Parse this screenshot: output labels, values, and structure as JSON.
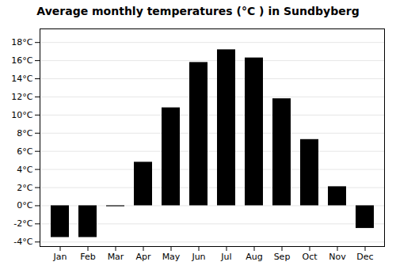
{
  "chart_data": {
    "type": "bar",
    "title": "Average monthly temperatures (°C ) in Sundbyberg",
    "categories": [
      "Jan",
      "Feb",
      "Mar",
      "Apr",
      "May",
      "Jun",
      "Jul",
      "Aug",
      "Sep",
      "Oct",
      "Nov",
      "Dec"
    ],
    "values": [
      -3.5,
      -3.5,
      -0.1,
      4.8,
      10.8,
      15.8,
      17.2,
      16.3,
      11.8,
      7.3,
      2.1,
      -2.5
    ],
    "ylim": [
      -4.5,
      19.5
    ],
    "yticks": [
      {
        "value": -4,
        "label": "-4°C"
      },
      {
        "value": -2,
        "label": "-2°C"
      },
      {
        "value": 0,
        "label": "0°C"
      },
      {
        "value": 2,
        "label": "2°C"
      },
      {
        "value": 4,
        "label": "4°C"
      },
      {
        "value": 6,
        "label": "6°C"
      },
      {
        "value": 8,
        "label": "8°C"
      },
      {
        "value": 10,
        "label": "10°C"
      },
      {
        "value": 12,
        "label": "12°C"
      },
      {
        "value": 14,
        "label": "14°C"
      },
      {
        "value": 16,
        "label": "16°C"
      },
      {
        "value": 18,
        "label": "18°C"
      }
    ],
    "grid": true
  }
}
